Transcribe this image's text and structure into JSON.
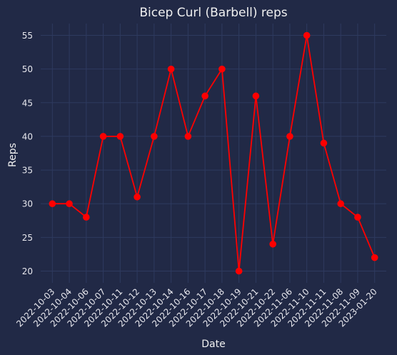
{
  "chart_data": {
    "type": "line",
    "title": "Bicep Curl (Barbell) reps",
    "xlabel": "Date",
    "ylabel": "Reps",
    "categories": [
      "2022-10-03",
      "2022-10-04",
      "2022-10-06",
      "2022-10-07",
      "2022-10-11",
      "2022-10-12",
      "2022-10-13",
      "2022-10-14",
      "2022-10-16",
      "2022-10-17",
      "2022-10-18",
      "2022-10-19",
      "2022-10-21",
      "2022-10-22",
      "2022-11-06",
      "2022-11-10",
      "2022-11-11",
      "2022-11-08",
      "2022-11-09",
      "2023-01-20"
    ],
    "series": [
      {
        "values": [
          30,
          30,
          28,
          40,
          40,
          31,
          40,
          50,
          40,
          46,
          50,
          20,
          46,
          24,
          40,
          55,
          39,
          30,
          28,
          22
        ],
        "color": "#ff0000"
      }
    ],
    "yticks": [
      20,
      25,
      30,
      35,
      40,
      45,
      50,
      55
    ],
    "ylim": [
      18.25,
      56.75
    ],
    "grid": true,
    "background": "#212946"
  }
}
